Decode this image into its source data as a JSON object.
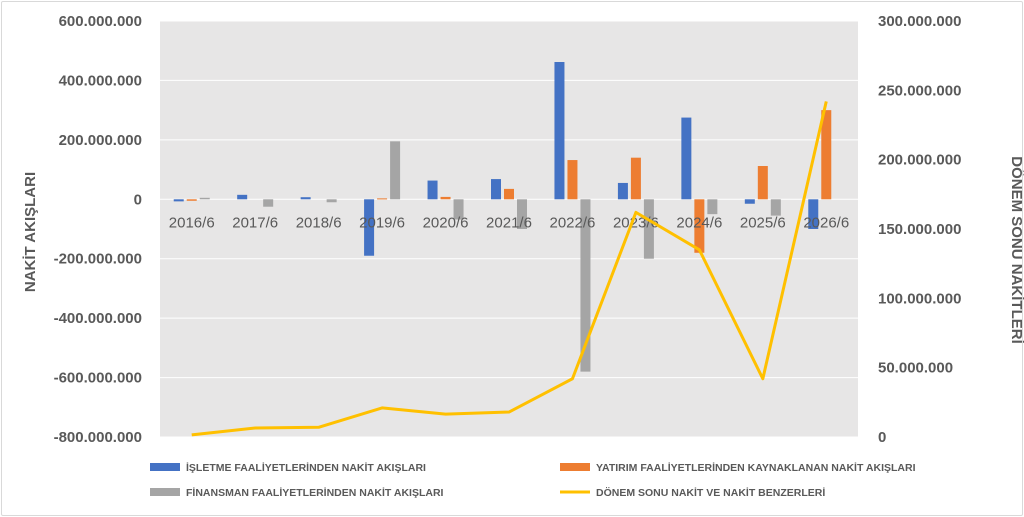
{
  "chart_data": {
    "type": "bar",
    "categories": [
      "2016/6",
      "2017/6",
      "2018/6",
      "2019/6",
      "2020/6",
      "2021/6",
      "2022/6",
      "2023/6",
      "2024/6",
      "2025/6",
      "2026/6"
    ],
    "series": [
      {
        "name": "İŞLETME FAALİYETLERİNDEN NAKİT AKIŞLARI",
        "type": "bar",
        "axis": "left",
        "color": "#4472C4",
        "values": [
          -7000000,
          15000000,
          7000000,
          -190000000,
          63000000,
          68000000,
          462000000,
          55000000,
          275000000,
          -15000000,
          -100000000
        ]
      },
      {
        "name": "YATIRIM FAALİYETLERİNDEN KAYNAKLANAN NAKİT AKIŞLARI",
        "type": "bar",
        "axis": "left",
        "color": "#ED7D31",
        "values": [
          -5000000,
          0,
          0,
          3000000,
          8000000,
          35000000,
          132000000,
          140000000,
          -180000000,
          112000000,
          300000000
        ]
      },
      {
        "name": "FİNANSMAN FAALİYETLERİNDEN NAKİT AKIŞLARI",
        "type": "bar",
        "axis": "left",
        "color": "#A5A5A5",
        "values": [
          5000000,
          -25000000,
          -10000000,
          195000000,
          -68000000,
          -100000000,
          -580000000,
          -200000000,
          -50000000,
          -55000000,
          0
        ]
      },
      {
        "name": "DÖNEM SONU NAKİT VE NAKİT BENZERLERİ",
        "type": "line",
        "axis": "right",
        "color": "#FFC000",
        "values": [
          1500000,
          6500000,
          7000000,
          21000000,
          16500000,
          18000000,
          42000000,
          162000000,
          135000000,
          42000000,
          242000000
        ]
      }
    ],
    "ylabel": "NAKİT AKIŞLARI",
    "y2label": "DÖNEM SONU NAKİTLERİ",
    "ylim": [
      -800000000,
      600000000
    ],
    "y2lim": [
      0,
      300000000
    ],
    "yticks": [
      "600.000.000",
      "400.000.000",
      "200.000.000",
      "0",
      "-200.000.000",
      "-400.000.000",
      "-600.000.000",
      "-800.000.000"
    ],
    "y2ticks": [
      "300.000.000",
      "250.000.000",
      "200.000.000",
      "150.000.000",
      "100.000.000",
      "50.000.000",
      "0"
    ],
    "grid": true,
    "plot_background": "#E7E6E6",
    "legend_position": "bottom"
  }
}
